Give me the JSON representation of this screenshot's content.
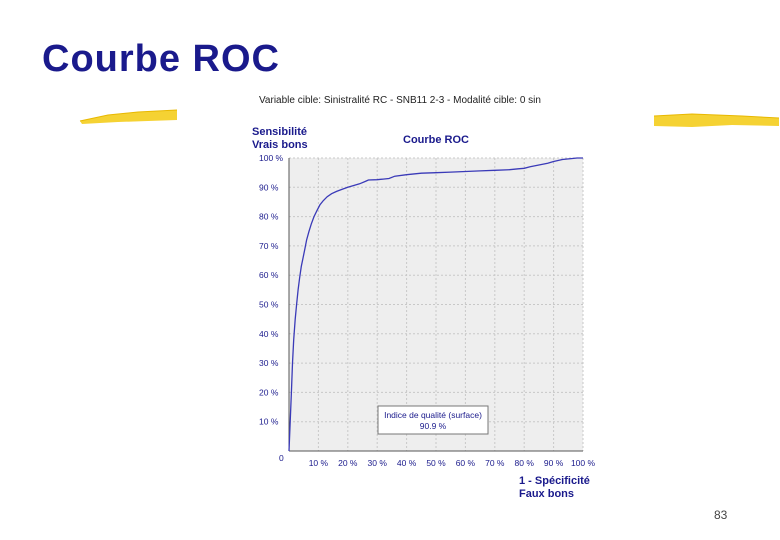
{
  "slide": {
    "title": "Courbe ROC",
    "page_number": "83"
  },
  "chart_data": {
    "type": "line",
    "subtitle": "Variable cible: Sinistralité RC - SNB11 2-3  -  Modalité cible: 0 sin",
    "title": "Courbe ROC",
    "ylabel": [
      "Sensibilité",
      "Vrais bons"
    ],
    "xlabel": [
      "1 - Spécificité",
      "Faux bons"
    ],
    "xlim": [
      0,
      100
    ],
    "ylim": [
      0,
      100
    ],
    "origin_label": "0",
    "x_ticks": [
      "10 %",
      "20 %",
      "30 %",
      "40 %",
      "50 %",
      "60 %",
      "70 %",
      "80 %",
      "90 %",
      "100 %"
    ],
    "y_ticks": [
      "10 %",
      "20 %",
      "30 %",
      "40 %",
      "50 %",
      "60 %",
      "70 %",
      "80 %",
      "90 %",
      "100 %"
    ],
    "grid": true,
    "colors": {
      "curve": "#3a3ab8",
      "plot_bg": "#eeeeee",
      "grid": "#c8c8c8",
      "labels": "#1a1a8c"
    },
    "series": [
      {
        "x": [
          0,
          0.4,
          0.8,
          1.2,
          1.6,
          2.1,
          2.6,
          3.1,
          3.6,
          4.2,
          4.8,
          5.4,
          6.0,
          6.8,
          7.6,
          8.5,
          9.5,
          10.5,
          11.7,
          13.0,
          14.5,
          16.2,
          18.0,
          20.0,
          22.0,
          24.0,
          26.0,
          27.0,
          30.0,
          32.0,
          34.0,
          36.0,
          40.0,
          45.0,
          50.0,
          55.0,
          60.0,
          65.0,
          70.0,
          75.0,
          78.0,
          80.0,
          82.0,
          85.0,
          88.0,
          90.0,
          93.0,
          96.0,
          98.0,
          100.0
        ],
        "y": [
          0,
          10.0,
          20.0,
          30.0,
          38.0,
          45.0,
          50.0,
          55.0,
          59.0,
          63.0,
          66.0,
          69.0,
          72.0,
          75.0,
          77.5,
          80.0,
          82.0,
          84.0,
          85.5,
          86.8,
          87.8,
          88.6,
          89.3,
          90.0,
          90.6,
          91.2,
          92.0,
          92.5,
          92.6,
          92.8,
          93.0,
          93.8,
          94.3,
          94.8,
          95.0,
          95.2,
          95.4,
          95.6,
          95.8,
          96.0,
          96.3,
          96.5,
          97.0,
          97.6,
          98.2,
          98.8,
          99.5,
          99.8,
          100.0,
          100.0
        ]
      }
    ],
    "annotation": {
      "line1": "Indice de qualité (surface)",
      "line2": "90.9 %",
      "value": 90.9
    }
  }
}
